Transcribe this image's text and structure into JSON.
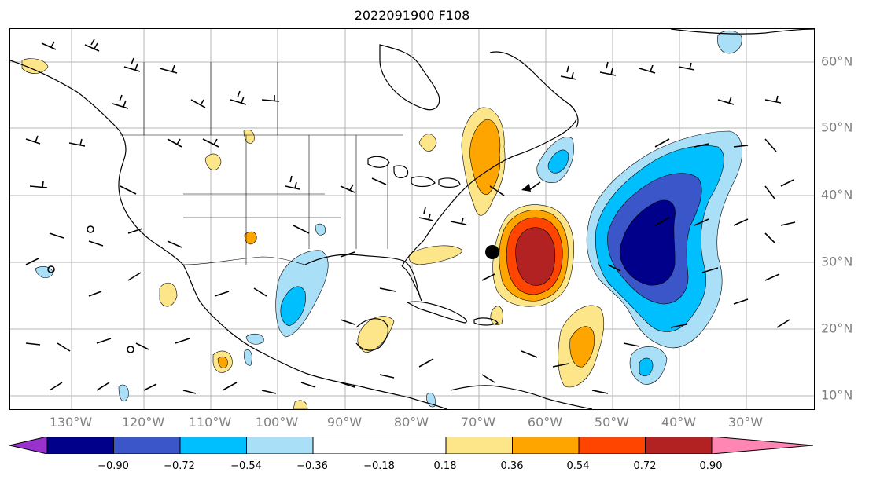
{
  "title": "2022091900 F108",
  "lon_labels": [
    "130°W",
    "120°W",
    "110°W",
    "100°W",
    "90°W",
    "80°W",
    "70°W",
    "60°W",
    "50°W",
    "40°W",
    "30°W"
  ],
  "lat_labels": [
    "60°N",
    "50°N",
    "40°N",
    "30°N",
    "20°N",
    "10°N"
  ],
  "colorbar": {
    "labels": [
      "−0.90",
      "−0.72",
      "−0.54",
      "−0.36",
      "−0.18",
      "0.18",
      "0.36",
      "0.54",
      "0.72",
      "0.90"
    ],
    "colors": [
      "#9932cc",
      "#00008b",
      "#3a56c8",
      "#00bfff",
      "#aadff8",
      "#ffffff",
      "#fde68a",
      "#ffa500",
      "#ff4500",
      "#b22222",
      "#ff85b3"
    ]
  },
  "marker": {
    "label": "storm-center",
    "lon": -68,
    "lat": 31.5
  }
}
